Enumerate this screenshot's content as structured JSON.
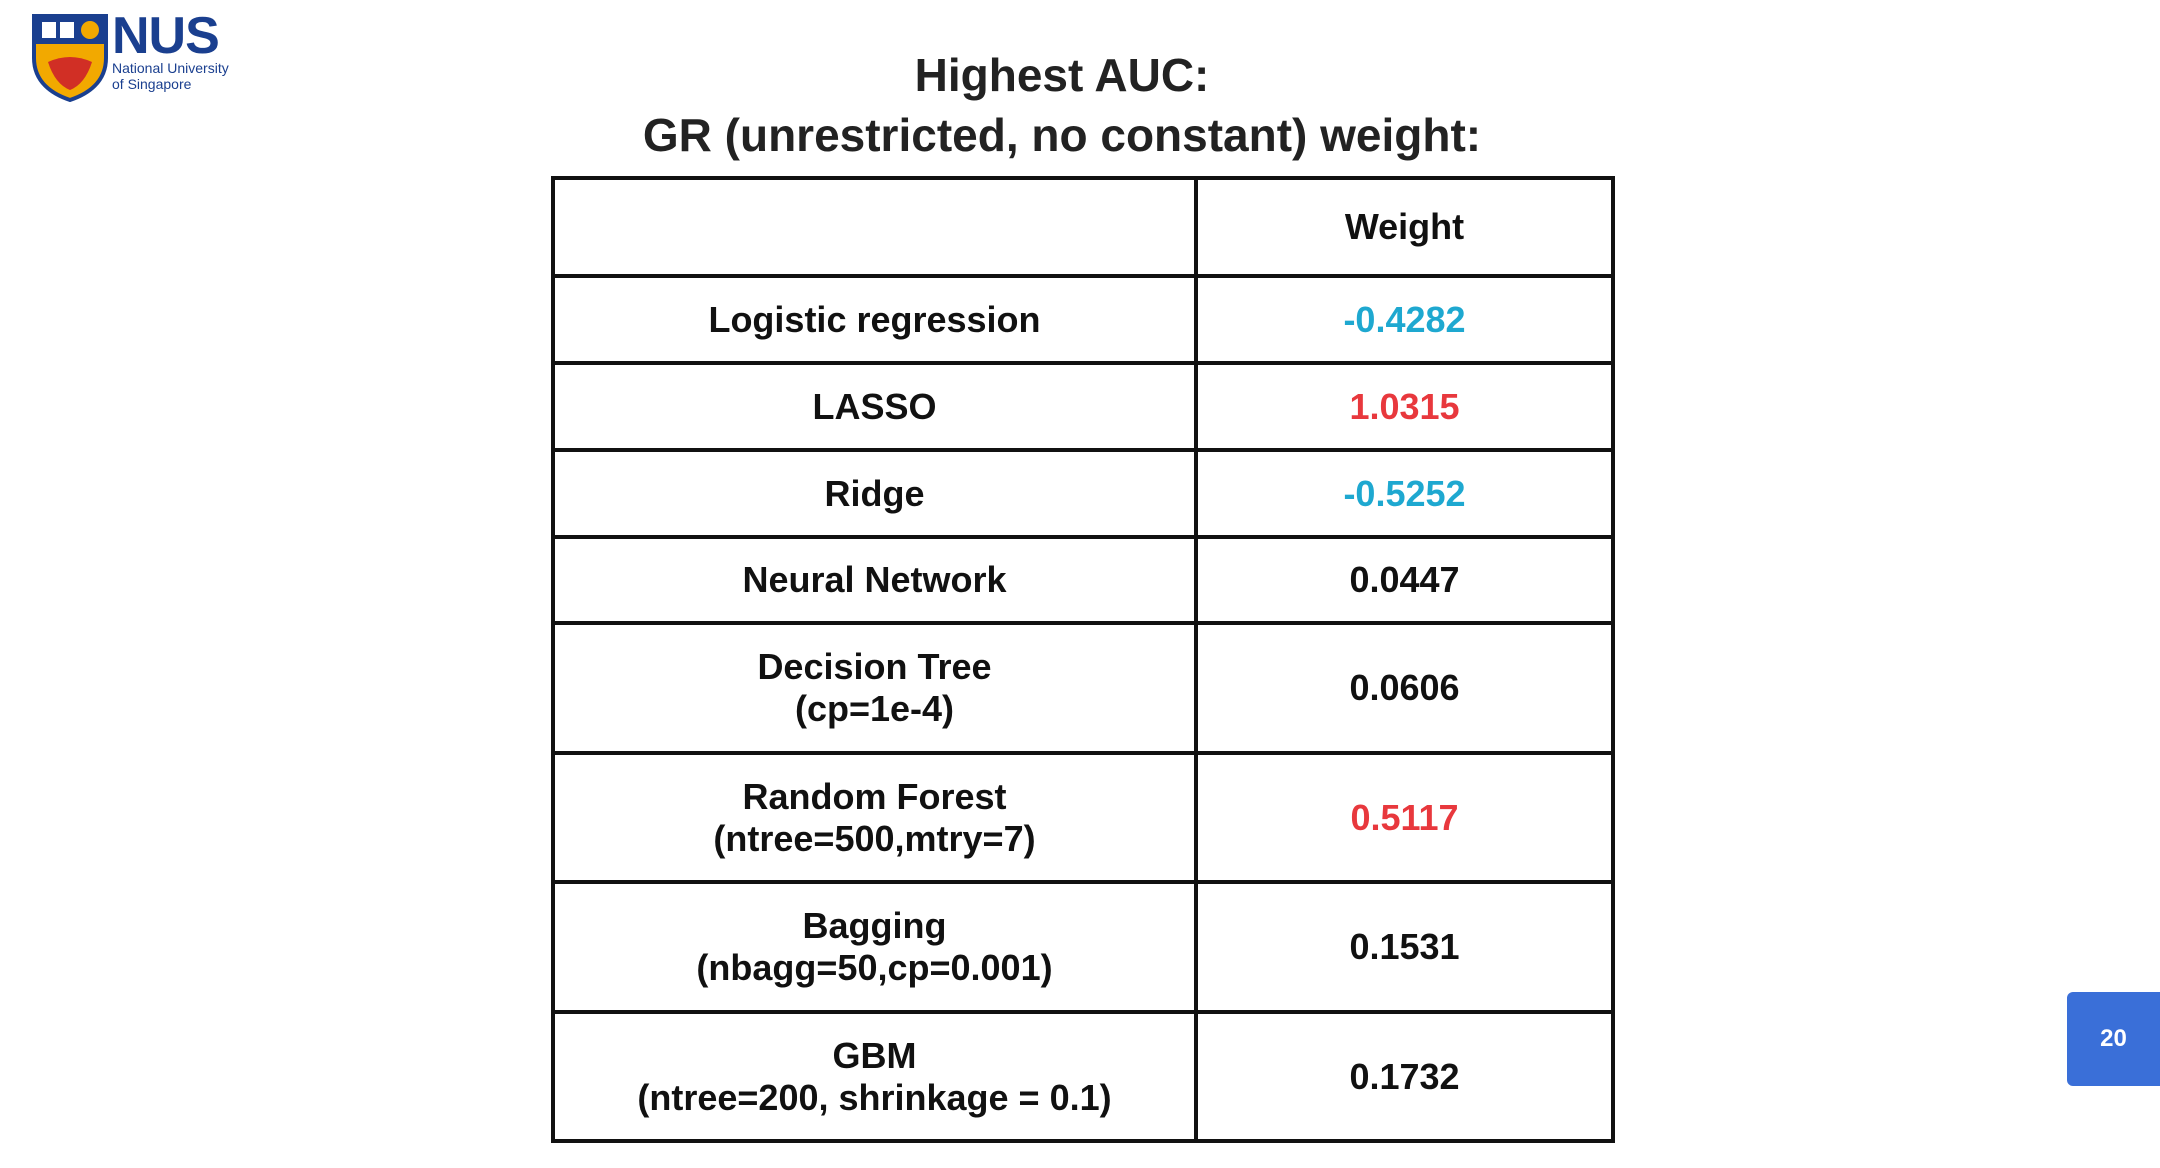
{
  "logo": {
    "name": "NUS",
    "line1": "National University",
    "line2": "of Singapore"
  },
  "title": {
    "line1": "Highest AUC:",
    "line2": "GR (unrestricted, no constant) weight:"
  },
  "table": {
    "header": "Weight",
    "rows": [
      {
        "model": [
          "Logistic regression"
        ],
        "weight": "-0.4282",
        "color": "#1ea8d0"
      },
      {
        "model": [
          "LASSO"
        ],
        "weight": "1.0315",
        "color": "#e8383d"
      },
      {
        "model": [
          "Ridge"
        ],
        "weight": "-0.5252",
        "color": "#1ea8d0"
      },
      {
        "model": [
          "Neural Network"
        ],
        "weight": "0.0447",
        "color": "#111111"
      },
      {
        "model": [
          "Decision Tree",
          "(cp=1e-4)"
        ],
        "weight": "0.0606",
        "color": "#111111"
      },
      {
        "model": [
          "Random Forest",
          "(ntree=500,mtry=7)"
        ],
        "weight": "0.5117",
        "color": "#e8383d"
      },
      {
        "model": [
          "Bagging",
          "(nbagg=50,cp=0.001)"
        ],
        "weight": "0.1531",
        "color": "#111111"
      },
      {
        "model": [
          "GBM",
          "(ntree=200, shrinkage = 0.1)"
        ],
        "weight": "0.1732",
        "color": "#111111"
      }
    ]
  },
  "page_number": "20"
}
